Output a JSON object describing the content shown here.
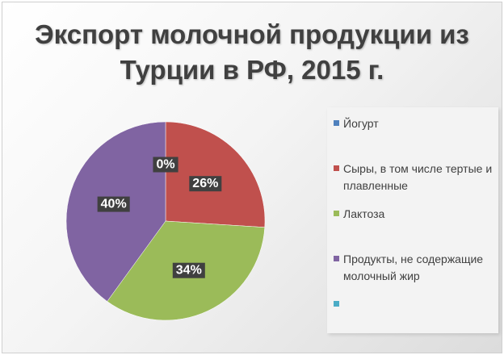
{
  "chart_data": {
    "type": "pie",
    "title": "Экспорт молочной продукции из Турции в РФ, 2015 г.",
    "title_lines": [
      "Экспорт молочной продукции из",
      "Турции в РФ, 2015 г."
    ],
    "slices": [
      {
        "label": "Йогурт",
        "value": 0,
        "value_label": "0%",
        "color": "#4f81bd"
      },
      {
        "label": "Сыры, в том числе тертые и плавленные",
        "value": 26,
        "value_label": "26%",
        "color": "#c0504d"
      },
      {
        "label": "Лактоза",
        "value": 34,
        "value_label": "34%",
        "color": "#9bbb59"
      },
      {
        "label": "Продукты, не содержащие молочный жир",
        "value": 40,
        "value_label": "40%",
        "color": "#8064a2"
      },
      {
        "label": "",
        "value": 0,
        "value_label": "",
        "color": "#4bacc6"
      }
    ],
    "legend_position": "right"
  }
}
